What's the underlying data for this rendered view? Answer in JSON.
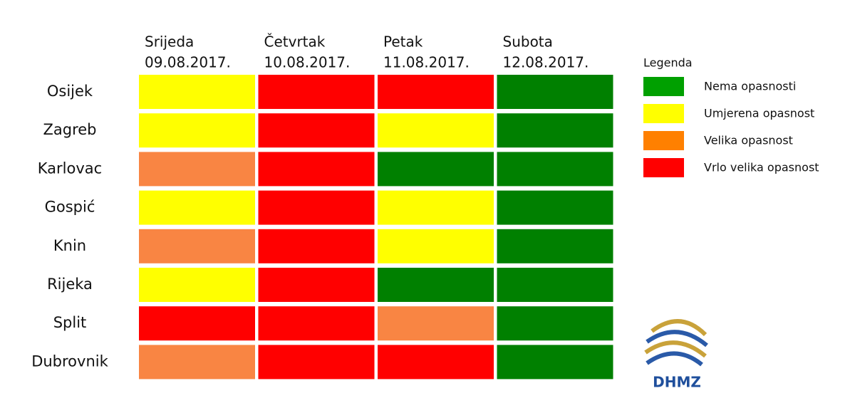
{
  "columns": [
    {
      "day": "Srijeda",
      "date": "09.08.2017."
    },
    {
      "day": "Četvrtak",
      "date": "10.08.2017."
    },
    {
      "day": "Petak",
      "date": "11.08.2017."
    },
    {
      "day": "Subota",
      "date": "12.08.2017."
    }
  ],
  "rows": [
    {
      "city": "Osijek",
      "cells": [
        "#ffff00",
        "#ff0000",
        "#ff0000",
        "#008000"
      ]
    },
    {
      "city": "Zagreb",
      "cells": [
        "#ffff00",
        "#ff0000",
        "#ffff00",
        "#008000"
      ]
    },
    {
      "city": "Karlovac",
      "cells": [
        "#f98543",
        "#ff0000",
        "#008000",
        "#008000"
      ]
    },
    {
      "city": "Gospić",
      "cells": [
        "#ffff00",
        "#ff0000",
        "#ffff00",
        "#008000"
      ]
    },
    {
      "city": "Knin",
      "cells": [
        "#f98543",
        "#ff0000",
        "#ffff00",
        "#008000"
      ]
    },
    {
      "city": "Rijeka",
      "cells": [
        "#ffff00",
        "#ff0000",
        "#008000",
        "#008000"
      ]
    },
    {
      "city": "Split",
      "cells": [
        "#ff0000",
        "#ff0000",
        "#f98543",
        "#008000"
      ]
    },
    {
      "city": "Dubrovnik",
      "cells": [
        "#f98543",
        "#ff0000",
        "#ff0000",
        "#008000"
      ]
    }
  ],
  "legend": {
    "title": "Legenda",
    "items": [
      {
        "name": "Nema opasnosti",
        "color": "#00a000"
      },
      {
        "name": "Umjerena opasnost",
        "color": "#ffff00"
      },
      {
        "name": "Velika opasnost",
        "color": "#ff8000"
      },
      {
        "name": "Vrlo velika opasnost",
        "color": "#ff0000"
      }
    ]
  },
  "logo": "DHMZ"
}
